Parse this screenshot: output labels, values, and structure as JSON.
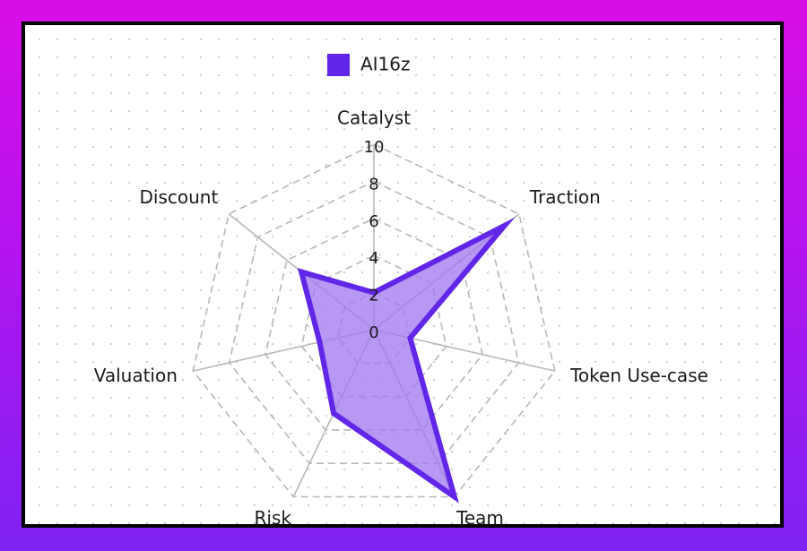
{
  "chart_data": {
    "type": "radar",
    "axes": [
      "Catalyst",
      "Traction",
      "Token Use-case",
      "Team",
      "Risk",
      "Valuation",
      "Discount"
    ],
    "series": [
      {
        "name": "AI16z",
        "values": [
          2,
          9,
          2,
          10,
          5,
          3,
          5
        ]
      }
    ],
    "r_range": [
      0,
      10
    ],
    "r_ticks": [
      "0",
      "2",
      "4",
      "6",
      "8",
      "10"
    ],
    "legend_position": "top",
    "grid": true,
    "colors": {
      "series_stroke": "#6126e8",
      "series_fill": "#a37cf0",
      "legend_swatch": "#6126e8",
      "grid": "#b8b8b8"
    }
  }
}
